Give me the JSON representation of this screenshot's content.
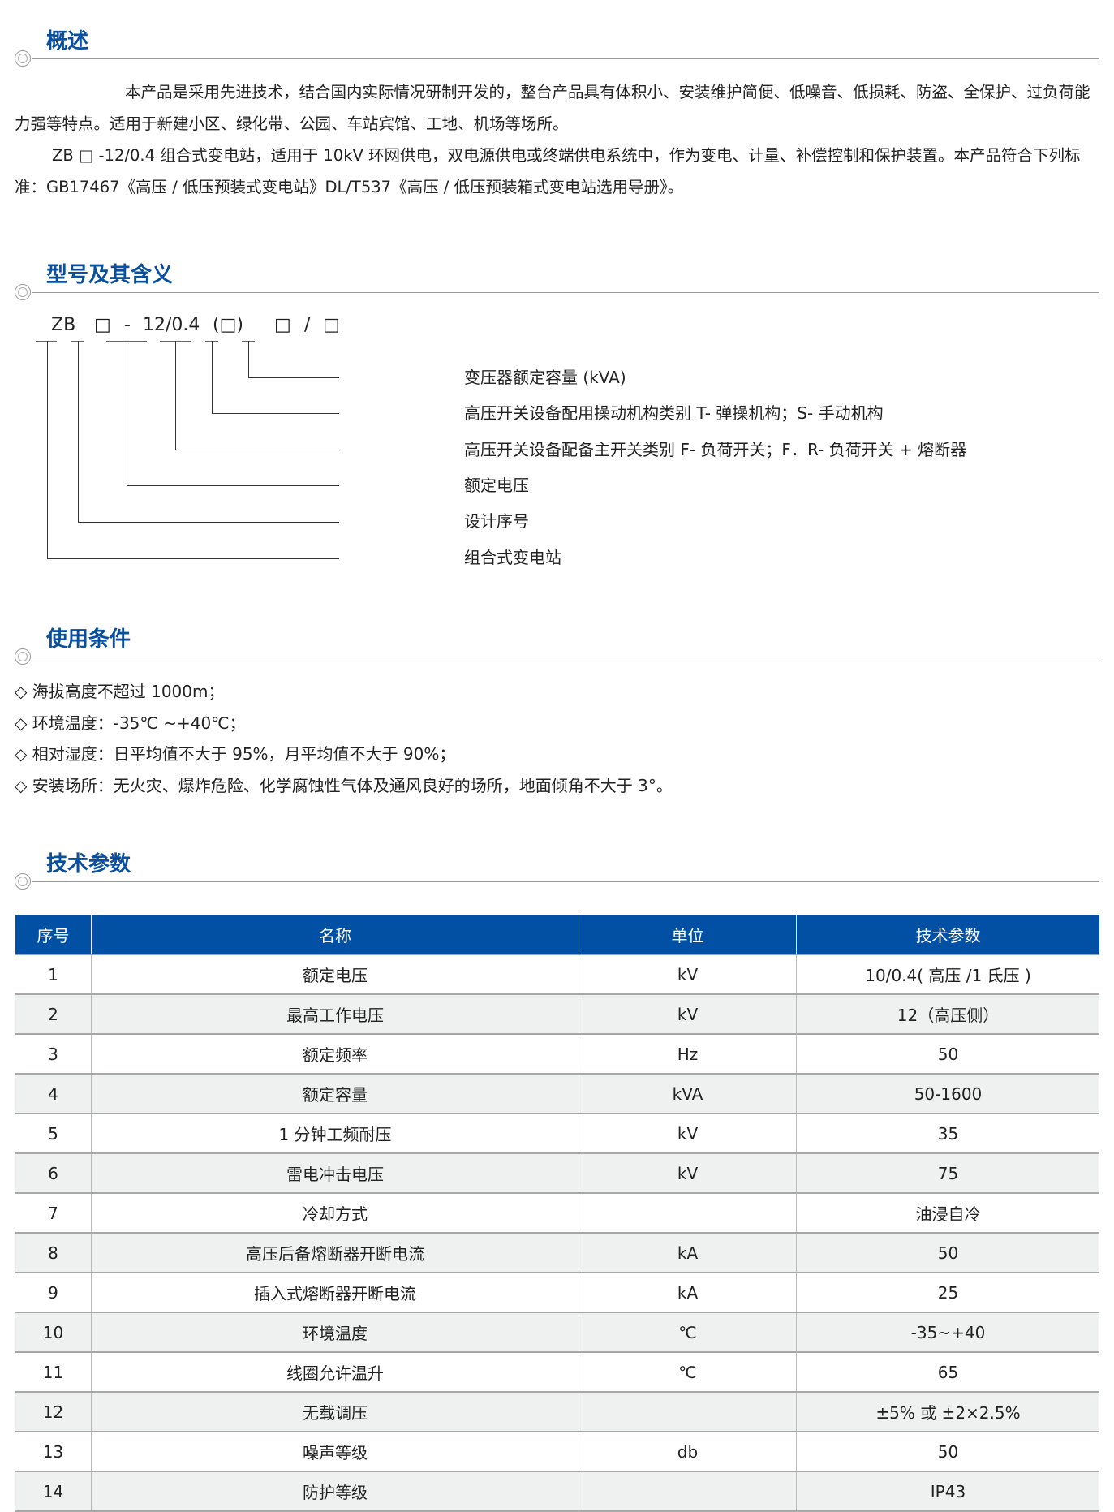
{
  "sections": {
    "overview": {
      "title": "概述",
      "paragraphs": [
        "本产品是采用先进技术，结合国内实际情况研制开发的，整台产品具有体积小、安装维护简便、低噪音、低损耗、防盗、全保护、过负荷能力强等特点。适用于新建小区、绿化带、公园、车站宾馆、工地、机场等场所。",
        "ZB □ -12/0.4 组合式变电站，适用于 10kV 环网供电，双电源供电或终端供电系统中，作为变电、计量、补偿控制和保护装置。本产品符合下列标准：GB17467《高压 / 低压预装式变电站》DL/T537《高压 / 低压预装箱式变电站选用导册》。"
      ]
    },
    "model": {
      "title": "型号及其含义",
      "code": [
        "ZB",
        "□",
        "-",
        "12/0.4",
        "(□)",
        "□",
        "/",
        "□"
      ],
      "labels": [
        "变压器额定容量 (kVA)",
        "高压开关设备配用操动机构类别 T- 弹操机构；S- 手动机构",
        "高压开关设备配备主开关类别 F- 负荷开关；F．R- 负荷开关 + 熔断器",
        "额定电压",
        "设计序号",
        "组合式变电站"
      ]
    },
    "conditions": {
      "title": "使用条件",
      "bullet_icon": "diamond-outline",
      "items": [
        "◇ 海拔高度不超过 1000m；",
        "◇ 环境温度：-35℃ ~+40℃；",
        "◇ 相对湿度：日平均值不大于 95%，月平均值不大于 90%；",
        "◇ 安装场所：无火灾、爆炸危险、化学腐蚀性气体及通风良好的场所，地面倾角不大于 3°。"
      ]
    },
    "params": {
      "title": "技术参数",
      "header_color": "#0250a3",
      "columns": [
        "序号",
        "名称",
        "单位",
        "技术参数"
      ],
      "rows": [
        [
          "1",
          "额定电压",
          "kV",
          "10/0.4( 高压 /1 氐压 )"
        ],
        [
          "2",
          "最高工作电压",
          "kV",
          "12（高压侧）"
        ],
        [
          "3",
          "额定频率",
          "Hz",
          "50"
        ],
        [
          "4",
          "额定容量",
          "kVA",
          "50-1600"
        ],
        [
          "5",
          "1 分钟工频耐压",
          "kV",
          "35"
        ],
        [
          "6",
          "雷电冲击电压",
          "kV",
          "75"
        ],
        [
          "7",
          "冷却方式",
          "",
          "油浸自冷"
        ],
        [
          "8",
          "高压后备熔断器开断电流",
          "kA",
          "50"
        ],
        [
          "9",
          "插入式熔断器开断电流",
          "kA",
          "25"
        ],
        [
          "10",
          "环境温度",
          "℃",
          "-35~+40"
        ],
        [
          "11",
          "线圈允许温升",
          "℃",
          "65"
        ],
        [
          "12",
          "无载调压",
          "",
          "±5% 或 ±2×2.5%"
        ],
        [
          "13",
          "噪声等级",
          "db",
          "50"
        ],
        [
          "14",
          "防护等级",
          "",
          "IP43"
        ]
      ]
    }
  }
}
